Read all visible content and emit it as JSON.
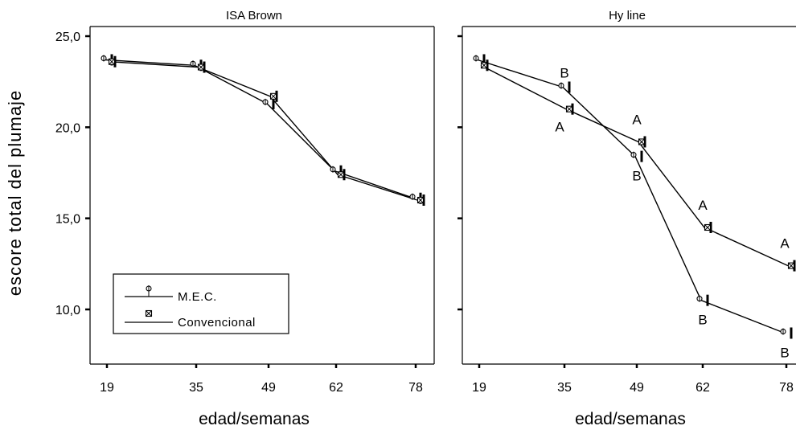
{
  "figure": {
    "ylabel": "escore total del plumaje"
  },
  "chart_data": [
    {
      "type": "line",
      "title": "ISA Brown",
      "xlabel": "edad/semanas",
      "ylabel": "escore total del plumaje",
      "categories": [
        "19",
        "35",
        "49",
        "62",
        "78"
      ],
      "ylim": [
        7.0,
        26.0
      ],
      "yticks": [
        "25,0",
        "20,0",
        "15,0",
        "10,0"
      ],
      "series": [
        {
          "name": "M.E.C.",
          "values": [
            23.7,
            23.4,
            21.3,
            17.6,
            16.1
          ],
          "letters": []
        },
        {
          "name": "Convencional",
          "values": [
            23.6,
            23.3,
            21.7,
            17.4,
            16.0
          ],
          "letters": []
        }
      ],
      "legend": {
        "position": "bottom-left",
        "entries": [
          "M.E.C.",
          "Convencional"
        ]
      }
    },
    {
      "type": "line",
      "title": "Hy line",
      "xlabel": "edad/semanas",
      "categories": [
        "19",
        "35",
        "49",
        "62",
        "78"
      ],
      "ylim": [
        7.0,
        26.0
      ],
      "series": [
        {
          "name": "M.E.C.",
          "values": [
            23.7,
            22.2,
            18.4,
            10.5,
            8.7
          ],
          "letters": [
            "",
            "B",
            "B",
            "B",
            "B"
          ]
        },
        {
          "name": "Convencional",
          "values": [
            23.4,
            21.0,
            19.2,
            14.5,
            12.4
          ],
          "letters": [
            "",
            "A",
            "A",
            "A",
            "A"
          ]
        }
      ]
    }
  ]
}
